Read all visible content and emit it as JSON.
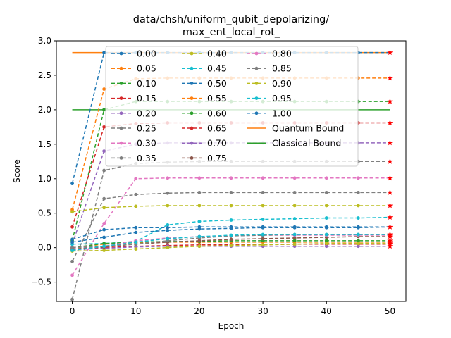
{
  "chart_data": {
    "type": "line",
    "title_line1": "data/chsh/uniform_qubit_depolarizing/",
    "title_line2": "max_ent_local_rot_",
    "xlabel": "Epoch",
    "ylabel": "Score",
    "xlim": [
      -2.5,
      52.5
    ],
    "ylim": [
      -0.78,
      3.0
    ],
    "xticks": [
      0,
      10,
      20,
      30,
      40,
      50
    ],
    "yticks": [
      -0.5,
      0.0,
      0.5,
      1.0,
      1.5,
      2.0,
      2.5,
      3.0
    ],
    "xtick_labels": [
      "0",
      "10",
      "20",
      "30",
      "40",
      "50"
    ],
    "ytick_labels": [
      "−0.5",
      "0.0",
      "0.5",
      "1.0",
      "1.5",
      "2.0",
      "2.5",
      "3.0"
    ],
    "x": [
      0,
      5,
      10,
      15,
      20,
      25,
      30,
      35,
      40,
      45,
      50
    ],
    "legend_position": "top-center",
    "series": [
      {
        "name": "0.00",
        "color": "#1f77b4",
        "values": [
          0.93,
          2.83,
          2.83,
          2.83,
          2.83,
          2.83,
          2.83,
          2.83,
          2.83,
          2.83,
          2.83
        ]
      },
      {
        "name": "0.05",
        "color": "#ff7f0e",
        "values": [
          0.55,
          2.3,
          2.45,
          2.46,
          2.46,
          2.46,
          2.46,
          2.46,
          2.46,
          2.46,
          2.46
        ]
      },
      {
        "name": "0.10",
        "color": "#2ca02c",
        "values": [
          0.1,
          2.0,
          2.12,
          2.12,
          2.12,
          2.12,
          2.12,
          2.12,
          2.12,
          2.12,
          2.12
        ]
      },
      {
        "name": "0.15",
        "color": "#d62728",
        "values": [
          0.3,
          1.75,
          1.8,
          1.81,
          1.81,
          1.81,
          1.81,
          1.81,
          1.81,
          1.81,
          1.81
        ]
      },
      {
        "name": "0.20",
        "color": "#9467bd",
        "values": [
          0.05,
          1.4,
          1.5,
          1.52,
          1.52,
          1.52,
          1.52,
          1.52,
          1.52,
          1.52,
          1.52
        ]
      },
      {
        "name": "0.25",
        "color": "#7f7f7f",
        "values": [
          -0.75,
          1.12,
          1.22,
          1.24,
          1.25,
          1.25,
          1.25,
          1.25,
          1.25,
          1.25,
          1.25
        ]
      },
      {
        "name": "0.30",
        "color": "#e377c2",
        "values": [
          -0.4,
          0.35,
          1.0,
          1.01,
          1.01,
          1.01,
          1.01,
          1.01,
          1.01,
          1.01,
          1.01
        ]
      },
      {
        "name": "0.35",
        "color": "#7f7f7f",
        "values": [
          -0.2,
          0.71,
          0.77,
          0.79,
          0.8,
          0.8,
          0.8,
          0.8,
          0.8,
          0.8,
          0.8
        ]
      },
      {
        "name": "0.40",
        "color": "#bcbd22",
        "values": [
          0.52,
          0.58,
          0.6,
          0.61,
          0.61,
          0.61,
          0.61,
          0.61,
          0.61,
          0.61,
          0.61
        ]
      },
      {
        "name": "0.45",
        "color": "#17becf",
        "values": [
          0.05,
          0.06,
          0.09,
          0.33,
          0.38,
          0.4,
          0.41,
          0.42,
          0.43,
          0.43,
          0.44
        ]
      },
      {
        "name": "0.50",
        "color": "#1f77b4",
        "values": [
          0.12,
          0.26,
          0.29,
          0.29,
          0.3,
          0.3,
          0.3,
          0.3,
          0.3,
          0.3,
          0.3
        ]
      },
      {
        "name": "0.55",
        "color": "#ff7f0e",
        "values": [
          0.0,
          0.05,
          0.07,
          0.08,
          0.08,
          0.08,
          0.08,
          0.08,
          0.08,
          0.08,
          0.08
        ]
      },
      {
        "name": "0.60",
        "color": "#2ca02c",
        "values": [
          0.0,
          0.06,
          0.08,
          0.09,
          0.09,
          0.1,
          0.1,
          0.1,
          0.1,
          0.1,
          0.1
        ]
      },
      {
        "name": "0.65",
        "color": "#d62728",
        "values": [
          -0.02,
          0.0,
          0.02,
          0.03,
          0.04,
          0.04,
          0.04,
          0.05,
          0.05,
          0.05,
          0.05
        ]
      },
      {
        "name": "0.70",
        "color": "#9467bd",
        "values": [
          -0.03,
          -0.01,
          0.01,
          0.02,
          0.02,
          0.02,
          0.02,
          0.02,
          0.02,
          0.02,
          0.02
        ]
      },
      {
        "name": "0.75",
        "color": "#8c564b",
        "values": [
          -0.02,
          0.01,
          0.05,
          0.08,
          0.1,
          0.12,
          0.13,
          0.14,
          0.15,
          0.16,
          0.16
        ]
      },
      {
        "name": "0.80",
        "color": "#e377c2",
        "values": [
          0.0,
          0.02,
          0.1,
          0.14,
          0.16,
          0.17,
          0.18,
          0.18,
          0.18,
          0.18,
          0.18
        ]
      },
      {
        "name": "0.85",
        "color": "#7f7f7f",
        "values": [
          0.0,
          0.02,
          0.05,
          0.1,
          0.14,
          0.17,
          0.18,
          0.19,
          0.19,
          0.19,
          0.19
        ]
      },
      {
        "name": "0.90",
        "color": "#bcbd22",
        "values": [
          -0.05,
          -0.04,
          -0.02,
          0.0,
          0.02,
          0.03,
          0.04,
          0.05,
          0.06,
          0.06,
          0.06
        ]
      },
      {
        "name": "0.95",
        "color": "#17becf",
        "values": [
          -0.04,
          0.02,
          0.08,
          0.13,
          0.16,
          0.18,
          0.19,
          0.19,
          0.19,
          0.19,
          0.19
        ]
      },
      {
        "name": "1.00",
        "color": "#1f77b4",
        "values": [
          0.08,
          0.15,
          0.22,
          0.25,
          0.27,
          0.28,
          0.29,
          0.29,
          0.29,
          0.29,
          0.3
        ]
      }
    ],
    "bounds": [
      {
        "name": "Quantum Bound",
        "color": "#ff7f0e",
        "value": 2.83
      },
      {
        "name": "Classical Bound",
        "color": "#2ca02c",
        "value": 2.0
      }
    ],
    "final_marker_color": "#ff0000"
  }
}
